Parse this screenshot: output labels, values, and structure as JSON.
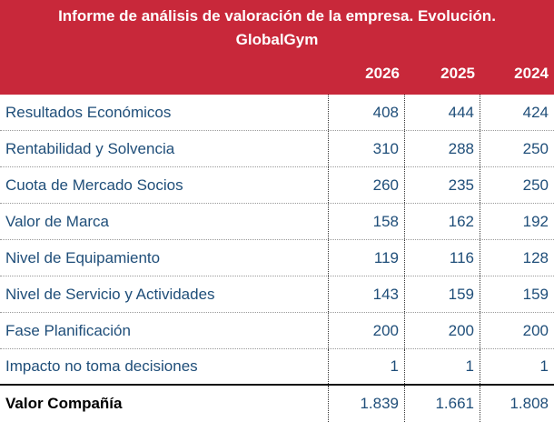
{
  "report": {
    "title_line1": "Informe de análisis de valoración de la empresa. Evolución.",
    "title_line2": "GlobalGym",
    "years": [
      "2026",
      "2025",
      "2024"
    ]
  },
  "rows": [
    {
      "label": "Resultados Económicos",
      "values": [
        "408",
        "444",
        "424"
      ]
    },
    {
      "label": "Rentabilidad y Solvencia",
      "values": [
        "310",
        "288",
        "250"
      ]
    },
    {
      "label": "Cuota de Mercado Socios",
      "values": [
        "260",
        "235",
        "250"
      ]
    },
    {
      "label": "Valor de Marca",
      "values": [
        "158",
        "162",
        "192"
      ]
    },
    {
      "label": "Nivel de Equipamiento",
      "values": [
        "119",
        "116",
        "128"
      ]
    },
    {
      "label": "Nivel de Servicio y Actividades",
      "values": [
        "143",
        "159",
        "159"
      ]
    },
    {
      "label": "Fase Planificación",
      "values": [
        "200",
        "200",
        "200"
      ]
    },
    {
      "label": "Impacto no toma decisiones",
      "values": [
        "1",
        "1",
        "1"
      ]
    }
  ],
  "total": {
    "label": "Valor Compañía",
    "values": [
      "1.839",
      "1.661",
      "1.808"
    ]
  },
  "colors": {
    "header_bg": "#c8283a",
    "value_text": "#1f4e79"
  }
}
